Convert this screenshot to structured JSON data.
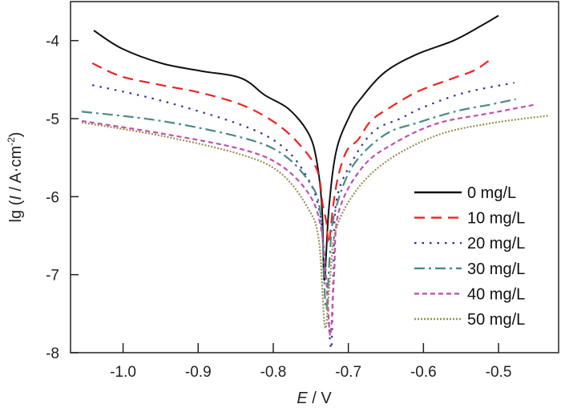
{
  "chart_data": {
    "type": "line",
    "xlabel": {
      "italic": "E",
      "rest": " / V"
    },
    "ylabel": {
      "prefix": "lg (",
      "italic": "I",
      "middle": " / A·cm",
      "sup": "-2",
      "suffix": ")"
    },
    "xlim": [
      -1.07,
      -0.42
    ],
    "ylim": [
      -8,
      -3.5
    ],
    "xticks": [
      -1.0,
      -0.9,
      -0.8,
      -0.7,
      -0.6,
      -0.5
    ],
    "xtick_labels": [
      "-1.0",
      "-0.9",
      "-0.8",
      "-0.7",
      "-0.6",
      "-0.5"
    ],
    "yticks": [
      -8,
      -7,
      -6,
      -5,
      -4
    ],
    "ytick_labels": [
      "-8",
      "-7",
      "-6",
      "-5",
      "-4"
    ],
    "grid": false,
    "legend_placement": "bottom-right",
    "series": [
      {
        "name": "0 mg/L",
        "color": "#111111",
        "dash": "solid",
        "points": [
          [
            -1.039,
            -3.87
          ],
          [
            -1.002,
            -4.1
          ],
          [
            -0.949,
            -4.29
          ],
          [
            -0.896,
            -4.39
          ],
          [
            -0.843,
            -4.48
          ],
          [
            -0.811,
            -4.7
          ],
          [
            -0.779,
            -4.88
          ],
          [
            -0.753,
            -5.19
          ],
          [
            -0.742,
            -5.55
          ],
          [
            -0.735,
            -6.16
          ],
          [
            -0.732,
            -7.07
          ],
          [
            -0.726,
            -6.16
          ],
          [
            -0.716,
            -5.41
          ],
          [
            -0.698,
            -4.96
          ],
          [
            -0.684,
            -4.75
          ],
          [
            -0.652,
            -4.41
          ],
          [
            -0.61,
            -4.18
          ],
          [
            -0.56,
            -4.0
          ],
          [
            -0.525,
            -3.82
          ],
          [
            -0.5,
            -3.68
          ]
        ]
      },
      {
        "name": "10 mg/L",
        "color": "#ee2222",
        "dash": "dashed",
        "points": [
          [
            -1.041,
            -4.29
          ],
          [
            -1.002,
            -4.46
          ],
          [
            -0.949,
            -4.57
          ],
          [
            -0.896,
            -4.67
          ],
          [
            -0.843,
            -4.82
          ],
          [
            -0.801,
            -5.03
          ],
          [
            -0.769,
            -5.29
          ],
          [
            -0.742,
            -5.65
          ],
          [
            -0.734,
            -6.11
          ],
          [
            -0.729,
            -6.34
          ],
          [
            -0.726,
            -6.6
          ],
          [
            -0.72,
            -6.1
          ],
          [
            -0.713,
            -5.72
          ],
          [
            -0.702,
            -5.41
          ],
          [
            -0.687,
            -5.27
          ],
          [
            -0.67,
            -5.03
          ],
          [
            -0.645,
            -4.86
          ],
          [
            -0.607,
            -4.65
          ],
          [
            -0.56,
            -4.48
          ],
          [
            -0.532,
            -4.38
          ],
          [
            -0.509,
            -4.23
          ]
        ]
      },
      {
        "name": "20 mg/L",
        "color": "#33339a",
        "dash": "dotted",
        "points": [
          [
            -1.041,
            -4.57
          ],
          [
            -0.949,
            -4.77
          ],
          [
            -0.843,
            -5.08
          ],
          [
            -0.79,
            -5.34
          ],
          [
            -0.758,
            -5.7
          ],
          [
            -0.739,
            -6.16
          ],
          [
            -0.73,
            -7.0
          ],
          [
            -0.723,
            -7.95
          ],
          [
            -0.72,
            -7.0
          ],
          [
            -0.716,
            -6.06
          ],
          [
            -0.695,
            -5.55
          ],
          [
            -0.666,
            -5.16
          ],
          [
            -0.631,
            -5.0
          ],
          [
            -0.599,
            -4.85
          ],
          [
            -0.546,
            -4.67
          ],
          [
            -0.479,
            -4.54
          ]
        ]
      },
      {
        "name": "30 mg/L",
        "color": "#4a8a88",
        "dash": "dash-dot",
        "points": [
          [
            -1.055,
            -4.91
          ],
          [
            -0.949,
            -5.03
          ],
          [
            -0.843,
            -5.24
          ],
          [
            -0.79,
            -5.44
          ],
          [
            -0.753,
            -5.8
          ],
          [
            -0.737,
            -6.22
          ],
          [
            -0.73,
            -7.43
          ],
          [
            -0.725,
            -6.8
          ],
          [
            -0.719,
            -6.24
          ],
          [
            -0.695,
            -5.62
          ],
          [
            -0.652,
            -5.21
          ],
          [
            -0.607,
            -5.05
          ],
          [
            -0.554,
            -4.9
          ],
          [
            -0.511,
            -4.82
          ],
          [
            -0.477,
            -4.75
          ]
        ]
      },
      {
        "name": "40 mg/L",
        "color": "#c050b0",
        "dash": "short-dash",
        "points": [
          [
            -1.055,
            -5.03
          ],
          [
            -0.949,
            -5.19
          ],
          [
            -0.843,
            -5.39
          ],
          [
            -0.79,
            -5.6
          ],
          [
            -0.753,
            -5.96
          ],
          [
            -0.737,
            -6.37
          ],
          [
            -0.729,
            -7.1
          ],
          [
            -0.724,
            -7.78
          ],
          [
            -0.719,
            -7.0
          ],
          [
            -0.713,
            -6.2
          ],
          [
            -0.681,
            -5.62
          ],
          [
            -0.638,
            -5.31
          ],
          [
            -0.581,
            -5.06
          ],
          [
            -0.511,
            -4.93
          ],
          [
            -0.451,
            -4.82
          ]
        ]
      },
      {
        "name": "50 mg/L",
        "color": "#9a9050",
        "dash": "fine-dotted",
        "points": [
          [
            -1.055,
            -5.05
          ],
          [
            -0.949,
            -5.22
          ],
          [
            -0.843,
            -5.46
          ],
          [
            -0.79,
            -5.7
          ],
          [
            -0.753,
            -6.16
          ],
          [
            -0.739,
            -6.58
          ],
          [
            -0.731,
            -7.68
          ],
          [
            -0.724,
            -7.0
          ],
          [
            -0.716,
            -6.4
          ],
          [
            -0.687,
            -5.89
          ],
          [
            -0.645,
            -5.52
          ],
          [
            -0.581,
            -5.21
          ],
          [
            -0.511,
            -5.06
          ],
          [
            -0.432,
            -4.96
          ]
        ]
      }
    ]
  }
}
